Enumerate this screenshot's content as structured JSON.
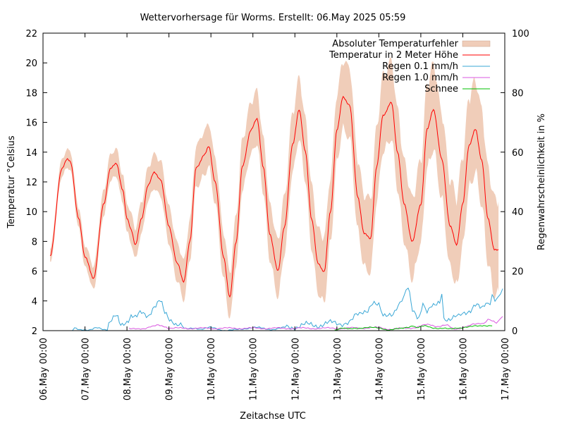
{
  "chart_data": {
    "type": "line",
    "title": "Wettervorhersage für Worms. Erstellt: 06.May 2025 05:59",
    "xlabel": "Zeitachse UTC",
    "ylabel": "Temperatur °Celsius",
    "y2label": "Regenwahrscheinlichkeit in %",
    "xlim_days": [
      0,
      11
    ],
    "ylim": [
      2,
      22
    ],
    "y2lim": [
      0,
      100
    ],
    "x_ticks": [
      "06.May 00:00",
      "07.May 00:00",
      "08.May 00:00",
      "09.May 00:00",
      "10.May 00:00",
      "11.May 00:00",
      "12.May 00:00",
      "13.May 00:00",
      "14.May 00:00",
      "15.May 00:00",
      "16.May 00:00",
      "17.May 00:00"
    ],
    "y_ticks": [
      2,
      4,
      6,
      8,
      10,
      12,
      14,
      16,
      18,
      20,
      22
    ],
    "y2_ticks": [
      0,
      20,
      40,
      60,
      80,
      100
    ],
    "legend_position": "top-right",
    "temperature_keypoints": [
      [
        0.17,
        7.0
      ],
      [
        0.45,
        12.9
      ],
      [
        0.58,
        13.5
      ],
      [
        0.65,
        13.4
      ],
      [
        0.85,
        9.5
      ],
      [
        1.0,
        7.0
      ],
      [
        1.2,
        5.5
      ],
      [
        1.45,
        10.5
      ],
      [
        1.6,
        12.9
      ],
      [
        1.75,
        13.2
      ],
      [
        1.9,
        11.5
      ],
      [
        2.0,
        9.5
      ],
      [
        2.1,
        8.8
      ],
      [
        2.2,
        7.8
      ],
      [
        2.35,
        9.5
      ],
      [
        2.5,
        11.8
      ],
      [
        2.65,
        12.6
      ],
      [
        2.8,
        12.2
      ],
      [
        3.0,
        9.0
      ],
      [
        3.2,
        6.5
      ],
      [
        3.35,
        5.3
      ],
      [
        3.5,
        8.0
      ],
      [
        3.65,
        13.0
      ],
      [
        3.85,
        13.8
      ],
      [
        3.95,
        14.4
      ],
      [
        4.1,
        12.0
      ],
      [
        4.3,
        7.0
      ],
      [
        4.45,
        4.2
      ],
      [
        4.6,
        8.0
      ],
      [
        4.75,
        13.0
      ],
      [
        4.95,
        15.5
      ],
      [
        5.1,
        16.2
      ],
      [
        5.25,
        13.0
      ],
      [
        5.4,
        8.5
      ],
      [
        5.6,
        6.0
      ],
      [
        5.75,
        9.0
      ],
      [
        5.95,
        14.5
      ],
      [
        6.1,
        16.9
      ],
      [
        6.25,
        14.0
      ],
      [
        6.4,
        9.5
      ],
      [
        6.55,
        6.5
      ],
      [
        6.7,
        6.0
      ],
      [
        6.85,
        10.0
      ],
      [
        7.0,
        15.5
      ],
      [
        7.15,
        17.7
      ],
      [
        7.3,
        17.2
      ],
      [
        7.5,
        11.0
      ],
      [
        7.65,
        8.5
      ],
      [
        7.8,
        8.2
      ],
      [
        7.95,
        13.0
      ],
      [
        8.1,
        16.5
      ],
      [
        8.3,
        17.3
      ],
      [
        8.45,
        14.0
      ],
      [
        8.6,
        10.5
      ],
      [
        8.8,
        8.0
      ],
      [
        9.0,
        10.5
      ],
      [
        9.15,
        15.5
      ],
      [
        9.3,
        16.9
      ],
      [
        9.5,
        13.5
      ],
      [
        9.7,
        9.0
      ],
      [
        9.85,
        7.8
      ],
      [
        10.0,
        10.5
      ],
      [
        10.15,
        14.5
      ],
      [
        10.3,
        15.5
      ],
      [
        10.45,
        13.5
      ],
      [
        10.6,
        9.5
      ],
      [
        10.75,
        7.5
      ],
      [
        10.85,
        7.4
      ]
    ],
    "series": [
      {
        "name": "Absoluter Temperaturfehler",
        "style": "band",
        "color": "#f0cdb9"
      },
      {
        "name": "Temperatur in 2 Meter Höhe",
        "style": "line",
        "color": "#ff0000"
      },
      {
        "name": "Regen 0.1 mm/h",
        "style": "line",
        "color": "#3aa7d6"
      },
      {
        "name": "Regen 1.0 mm/h",
        "style": "line",
        "color": "#d957e0"
      },
      {
        "name": "Schnee",
        "style": "line",
        "color": "#00c000"
      }
    ],
    "rain01_keypoints": [
      [
        0.7,
        0.0
      ],
      [
        0.75,
        1.0
      ],
      [
        0.9,
        0.5
      ],
      [
        1.1,
        0.0
      ],
      [
        1.3,
        1.0
      ],
      [
        1.5,
        0.5
      ],
      [
        1.6,
        3.0
      ],
      [
        1.75,
        4.5
      ],
      [
        1.85,
        2.0
      ],
      [
        2.0,
        3.5
      ],
      [
        2.1,
        5.0
      ],
      [
        2.2,
        4.0
      ],
      [
        2.35,
        6.0
      ],
      [
        2.5,
        5.5
      ],
      [
        2.65,
        8.0
      ],
      [
        2.8,
        9.5
      ],
      [
        2.9,
        6.0
      ],
      [
        3.05,
        4.0
      ],
      [
        3.2,
        2.0
      ],
      [
        3.4,
        0.5
      ],
      [
        3.6,
        1.0
      ],
      [
        3.8,
        0.5
      ],
      [
        4.0,
        1.0
      ],
      [
        4.4,
        0.0
      ],
      [
        5.0,
        1.0
      ],
      [
        5.5,
        0.5
      ],
      [
        6.0,
        1.5
      ],
      [
        6.5,
        2.0
      ],
      [
        7.0,
        2.5
      ],
      [
        7.3,
        3.0
      ],
      [
        7.5,
        5.0
      ],
      [
        7.7,
        7.0
      ],
      [
        7.85,
        9.5
      ],
      [
        8.0,
        8.0
      ],
      [
        8.1,
        4.5
      ],
      [
        8.3,
        6.0
      ],
      [
        8.5,
        9.0
      ],
      [
        8.6,
        11.0
      ],
      [
        8.7,
        14.0
      ],
      [
        8.8,
        7.0
      ],
      [
        8.95,
        5.0
      ],
      [
        9.05,
        9.0
      ],
      [
        9.15,
        6.0
      ],
      [
        9.3,
        8.0
      ],
      [
        9.45,
        10.0
      ],
      [
        9.5,
        13.5
      ],
      [
        9.55,
        4.5
      ],
      [
        9.7,
        3.5
      ],
      [
        9.9,
        4.5
      ],
      [
        10.0,
        6.0
      ],
      [
        10.15,
        7.0
      ],
      [
        10.3,
        8.5
      ],
      [
        10.45,
        7.0
      ],
      [
        10.55,
        9.0
      ],
      [
        10.65,
        10.0
      ],
      [
        10.7,
        12.5
      ],
      [
        10.8,
        10.5
      ],
      [
        10.9,
        12.5
      ],
      [
        10.95,
        13.0
      ]
    ],
    "rain10_keypoints": [
      [
        2.05,
        0.5
      ],
      [
        2.4,
        0.8
      ],
      [
        2.6,
        1.3
      ],
      [
        2.75,
        1.8
      ],
      [
        2.9,
        1.5
      ],
      [
        3.0,
        0.8
      ],
      [
        7.15,
        0.8
      ],
      [
        7.5,
        0.9
      ],
      [
        8.0,
        1.0
      ],
      [
        8.3,
        0.5
      ],
      [
        8.8,
        1.0
      ],
      [
        9.2,
        2.0
      ],
      [
        9.4,
        1.5
      ],
      [
        9.6,
        1.8
      ],
      [
        9.8,
        0.5
      ],
      [
        10.1,
        1.5
      ],
      [
        10.25,
        2.0
      ],
      [
        10.5,
        2.5
      ],
      [
        10.6,
        4.0
      ],
      [
        10.7,
        3.5
      ],
      [
        10.8,
        2.5
      ],
      [
        10.95,
        4.5
      ]
    ],
    "snow_keypoints": [
      [
        6.95,
        0.3
      ],
      [
        7.1,
        0.8
      ],
      [
        7.3,
        0.5
      ],
      [
        7.45,
        0.9
      ],
      [
        7.7,
        1.0
      ],
      [
        8.0,
        0.9
      ],
      [
        8.25,
        0.3
      ],
      [
        8.5,
        0.6
      ],
      [
        8.7,
        1.2
      ],
      [
        8.8,
        1.8
      ],
      [
        8.9,
        1.0
      ],
      [
        9.1,
        1.5
      ],
      [
        9.3,
        1.0
      ],
      [
        9.5,
        0.8
      ],
      [
        9.7,
        0.5
      ],
      [
        9.9,
        1.0
      ],
      [
        10.1,
        1.2
      ],
      [
        10.35,
        1.5
      ],
      [
        10.5,
        1.8
      ],
      [
        10.7,
        1.7
      ]
    ]
  }
}
